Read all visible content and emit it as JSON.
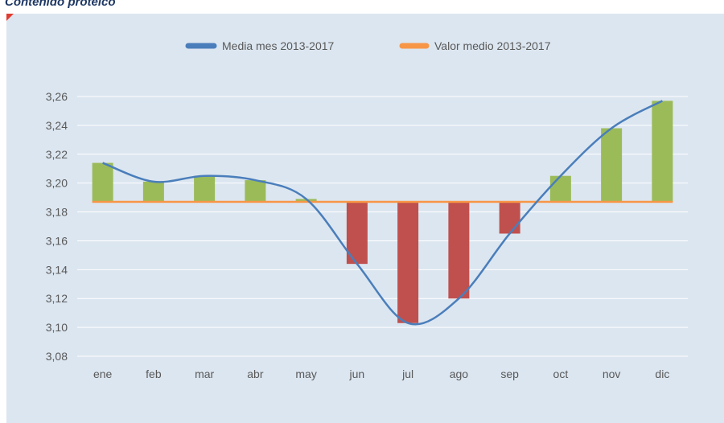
{
  "chart_data": {
    "type": "bar_line",
    "title": "Contenido proteico",
    "categories": [
      "ene",
      "feb",
      "mar",
      "abr",
      "may",
      "jun",
      "jul",
      "ago",
      "sep",
      "oct",
      "nov",
      "dic"
    ],
    "series": [
      {
        "name": "Media mes 2013-2017",
        "color": "#4a7ebb",
        "values": [
          3.214,
          3.201,
          3.205,
          3.202,
          3.189,
          3.144,
          3.103,
          3.12,
          3.165,
          3.205,
          3.238,
          3.257
        ]
      },
      {
        "name": "Valor medio 2013-2017",
        "color": "#f79646",
        "value": 3.187
      }
    ],
    "above_color": "#9bbb59",
    "below_color": "#c0504d",
    "ylim": [
      3.08,
      3.26
    ],
    "yticks": [
      {
        "value": 3.08,
        "label": "3,08"
      },
      {
        "value": 3.1,
        "label": "3,10"
      },
      {
        "value": 3.12,
        "label": "3,12"
      },
      {
        "value": 3.14,
        "label": "3,14"
      },
      {
        "value": 3.16,
        "label": "3,16"
      },
      {
        "value": 3.18,
        "label": "3,18"
      },
      {
        "value": 3.2,
        "label": "3,20"
      },
      {
        "value": 3.22,
        "label": "3,22"
      },
      {
        "value": 3.24,
        "label": "3,24"
      },
      {
        "value": 3.26,
        "label": "3,26"
      }
    ],
    "grid": true
  }
}
